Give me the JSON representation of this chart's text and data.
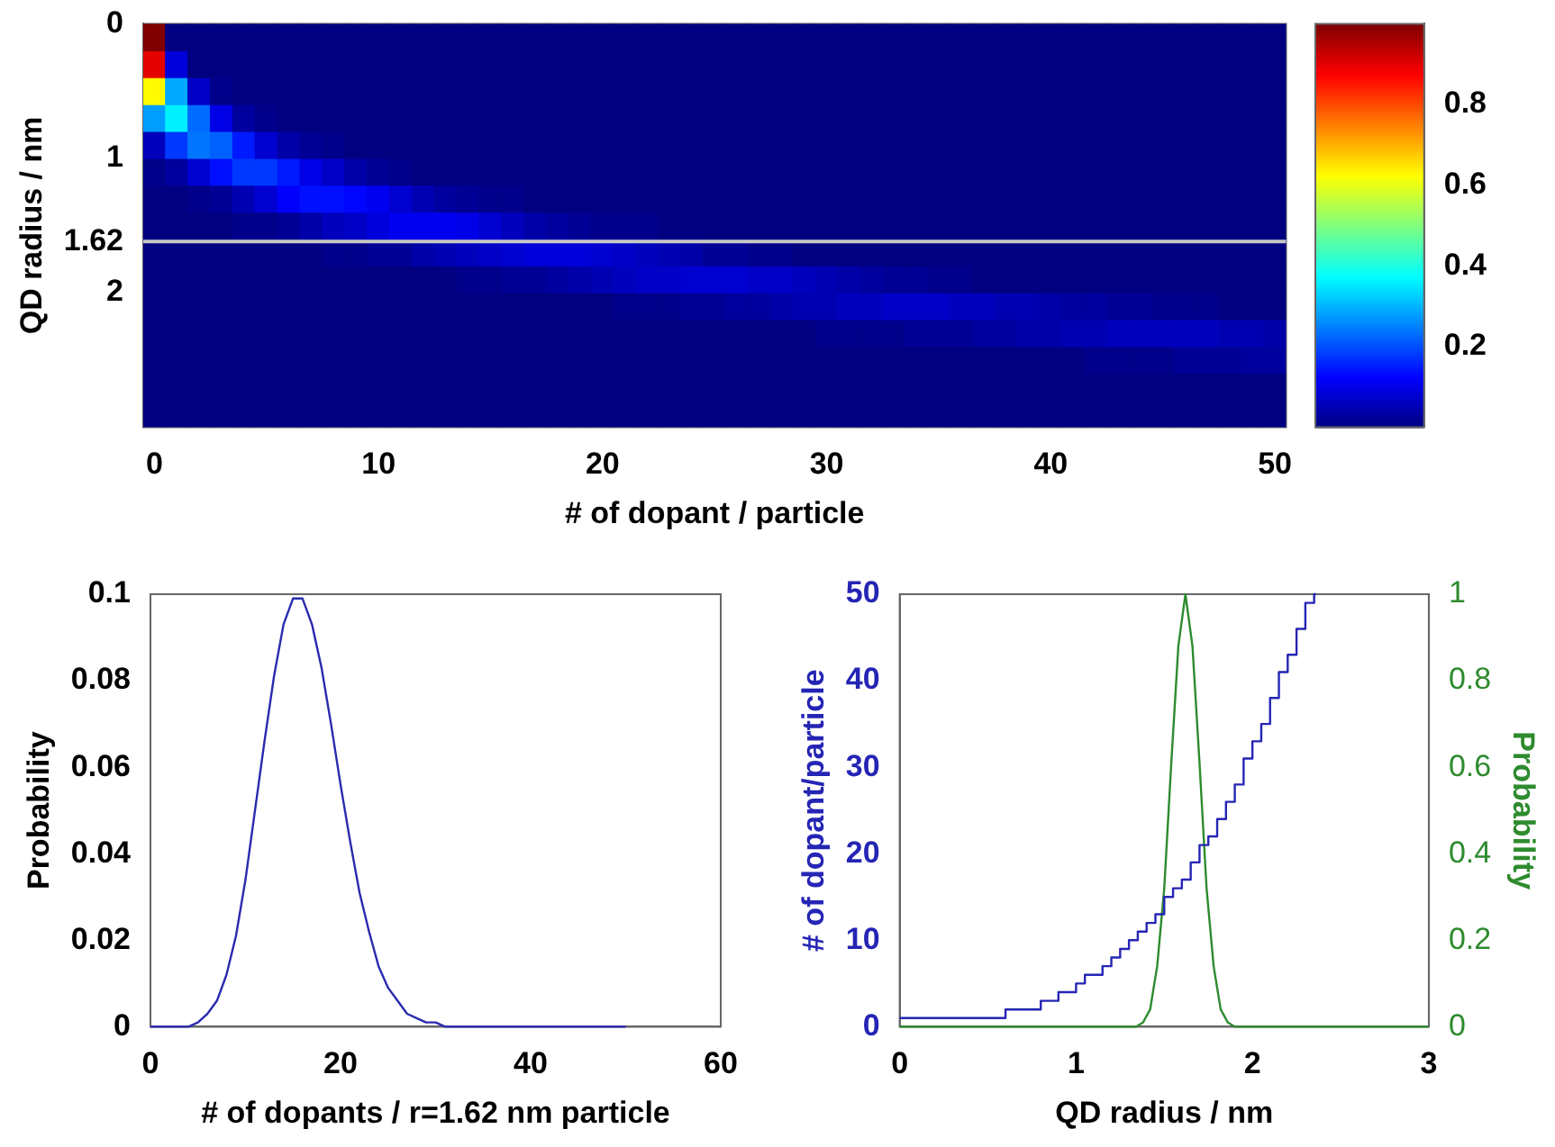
{
  "chart_data": [
    {
      "type": "heatmap",
      "xlabel": "# of dopant / particle",
      "ylabel": "QD radius / nm",
      "categories": [
        "0",
        null,
        null,
        null,
        null,
        null,
        null,
        null,
        null,
        null,
        "10",
        null,
        null,
        null,
        null,
        null,
        null,
        null,
        null,
        null,
        "20",
        null,
        null,
        null,
        null,
        null,
        null,
        null,
        null,
        null,
        "30",
        null,
        null,
        null,
        null,
        null,
        null,
        null,
        null,
        null,
        "40",
        null,
        null,
        null,
        null,
        null,
        null,
        null,
        null,
        null,
        "50"
      ],
      "ylim": [
        3,
        0
      ],
      "yticks": [
        0,
        1,
        1.62,
        2
      ],
      "clim": [
        0,
        1
      ],
      "cticks": [
        0.2,
        0.4,
        0.6,
        0.8
      ],
      "ref_lines": [
        {
          "axis": "y",
          "value": 1.62,
          "color": "#c8c8c8"
        }
      ],
      "cells": [
        [
          1,
          0,
          0,
          0,
          0,
          0,
          0,
          0,
          0,
          0,
          0,
          0,
          0,
          0,
          0,
          0,
          0,
          0,
          0,
          0,
          0,
          0,
          0,
          0,
          0,
          0,
          0,
          0,
          0,
          0,
          0,
          0,
          0,
          0,
          0,
          0,
          0,
          0,
          0,
          0,
          0,
          0,
          0,
          0,
          0,
          0,
          0,
          0,
          0,
          0,
          0
        ],
        [
          0.9,
          0.09,
          0,
          0,
          0,
          0,
          0,
          0,
          0,
          0,
          0,
          0,
          0,
          0,
          0,
          0,
          0,
          0,
          0,
          0,
          0,
          0,
          0,
          0,
          0,
          0,
          0,
          0,
          0,
          0,
          0,
          0,
          0,
          0,
          0,
          0,
          0,
          0,
          0,
          0,
          0,
          0,
          0,
          0,
          0,
          0,
          0,
          0,
          0,
          0,
          0
        ],
        [
          0.63,
          0.29,
          0.07,
          0.01,
          0,
          0,
          0,
          0,
          0,
          0,
          0,
          0,
          0,
          0,
          0,
          0,
          0,
          0,
          0,
          0,
          0,
          0,
          0,
          0,
          0,
          0,
          0,
          0,
          0,
          0,
          0,
          0,
          0,
          0,
          0,
          0,
          0,
          0,
          0,
          0,
          0,
          0,
          0,
          0,
          0,
          0,
          0,
          0,
          0,
          0,
          0
        ],
        [
          0.28,
          0.36,
          0.23,
          0.1,
          0.03,
          0.01,
          0,
          0,
          0,
          0,
          0,
          0,
          0,
          0,
          0,
          0,
          0,
          0,
          0,
          0,
          0,
          0,
          0,
          0,
          0,
          0,
          0,
          0,
          0,
          0,
          0,
          0,
          0,
          0,
          0,
          0,
          0,
          0,
          0,
          0,
          0,
          0,
          0,
          0,
          0,
          0,
          0,
          0,
          0,
          0,
          0
        ],
        [
          0.06,
          0.18,
          0.24,
          0.22,
          0.15,
          0.08,
          0.04,
          0.02,
          0.01,
          0,
          0,
          0,
          0,
          0,
          0,
          0,
          0,
          0,
          0,
          0,
          0,
          0,
          0,
          0,
          0,
          0,
          0,
          0,
          0,
          0,
          0,
          0,
          0,
          0,
          0,
          0,
          0,
          0,
          0,
          0,
          0,
          0,
          0,
          0,
          0,
          0,
          0,
          0,
          0,
          0,
          0
        ],
        [
          0.01,
          0.03,
          0.08,
          0.14,
          0.18,
          0.18,
          0.15,
          0.1,
          0.07,
          0.04,
          0.02,
          0.01,
          0,
          0,
          0,
          0,
          0,
          0,
          0,
          0,
          0,
          0,
          0,
          0,
          0,
          0,
          0,
          0,
          0,
          0,
          0,
          0,
          0,
          0,
          0,
          0,
          0,
          0,
          0,
          0,
          0,
          0,
          0,
          0,
          0,
          0,
          0,
          0,
          0,
          0,
          0
        ],
        [
          0,
          0,
          0.01,
          0.02,
          0.05,
          0.08,
          0.12,
          0.14,
          0.14,
          0.13,
          0.11,
          0.08,
          0.05,
          0.03,
          0.02,
          0.01,
          0.01,
          0,
          0,
          0,
          0,
          0,
          0,
          0,
          0,
          0,
          0,
          0,
          0,
          0,
          0,
          0,
          0,
          0,
          0,
          0,
          0,
          0,
          0,
          0,
          0,
          0,
          0,
          0,
          0,
          0,
          0,
          0,
          0,
          0,
          0
        ],
        [
          0,
          0,
          0,
          0,
          0.01,
          0.01,
          0.02,
          0.04,
          0.06,
          0.07,
          0.09,
          0.11,
          0.11,
          0.11,
          0.1,
          0.08,
          0.06,
          0.04,
          0.03,
          0.02,
          0.01,
          0.01,
          0.01,
          0,
          0,
          0,
          0,
          0,
          0,
          0,
          0,
          0,
          0,
          0,
          0,
          0,
          0,
          0,
          0,
          0,
          0,
          0,
          0,
          0,
          0,
          0,
          0,
          0,
          0,
          0,
          0
        ],
        [
          0,
          0,
          0,
          0,
          0,
          0,
          0,
          0,
          0.01,
          0.01,
          0.02,
          0.02,
          0.04,
          0.05,
          0.06,
          0.07,
          0.08,
          0.09,
          0.09,
          0.09,
          0.08,
          0.07,
          0.06,
          0.05,
          0.04,
          0.02,
          0.02,
          0.01,
          0.01,
          0,
          0,
          0,
          0,
          0,
          0,
          0,
          0,
          0,
          0,
          0,
          0,
          0,
          0,
          0,
          0,
          0,
          0,
          0,
          0,
          0,
          0
        ],
        [
          0,
          0,
          0,
          0,
          0,
          0,
          0,
          0,
          0,
          0,
          0,
          0,
          0,
          0,
          0.01,
          0.01,
          0.02,
          0.02,
          0.03,
          0.04,
          0.05,
          0.06,
          0.07,
          0.07,
          0.08,
          0.08,
          0.08,
          0.07,
          0.07,
          0.06,
          0.05,
          0.04,
          0.03,
          0.02,
          0.02,
          0.01,
          0.01,
          0,
          0,
          0,
          0,
          0,
          0,
          0,
          0,
          0,
          0,
          0,
          0,
          0,
          0
        ],
        [
          0,
          0,
          0,
          0,
          0,
          0,
          0,
          0,
          0,
          0,
          0,
          0,
          0,
          0,
          0,
          0,
          0,
          0,
          0,
          0,
          0,
          0.01,
          0.01,
          0.01,
          0.02,
          0.02,
          0.03,
          0.03,
          0.04,
          0.05,
          0.05,
          0.06,
          0.06,
          0.07,
          0.07,
          0.07,
          0.06,
          0.06,
          0.05,
          0.05,
          0.04,
          0.03,
          0.03,
          0.02,
          0.02,
          0.01,
          0.01,
          0.01,
          0,
          0,
          0
        ],
        [
          0,
          0,
          0,
          0,
          0,
          0,
          0,
          0,
          0,
          0,
          0,
          0,
          0,
          0,
          0,
          0,
          0,
          0,
          0,
          0,
          0,
          0,
          0,
          0,
          0,
          0,
          0,
          0,
          0,
          0,
          0.01,
          0.01,
          0.01,
          0.01,
          0.02,
          0.02,
          0.02,
          0.03,
          0.03,
          0.04,
          0.04,
          0.05,
          0.05,
          0.06,
          0.06,
          0.06,
          0.06,
          0.06,
          0.05,
          0.05,
          0.04
        ],
        [
          0,
          0,
          0,
          0,
          0,
          0,
          0,
          0,
          0,
          0,
          0,
          0,
          0,
          0,
          0,
          0,
          0,
          0,
          0,
          0,
          0,
          0,
          0,
          0,
          0,
          0,
          0,
          0,
          0,
          0,
          0,
          0,
          0,
          0,
          0,
          0,
          0,
          0,
          0,
          0,
          0,
          0,
          0.01,
          0.01,
          0.01,
          0.01,
          0.02,
          0.02,
          0.02,
          0.03,
          0.03
        ],
        [
          0,
          0,
          0,
          0,
          0,
          0,
          0,
          0,
          0,
          0,
          0,
          0,
          0,
          0,
          0,
          0,
          0,
          0,
          0,
          0,
          0,
          0,
          0,
          0,
          0,
          0,
          0,
          0,
          0,
          0,
          0,
          0,
          0,
          0,
          0,
          0,
          0,
          0,
          0,
          0,
          0,
          0,
          0,
          0,
          0,
          0,
          0,
          0,
          0,
          0,
          0
        ],
        [
          0,
          0,
          0,
          0,
          0,
          0,
          0,
          0,
          0,
          0,
          0,
          0,
          0,
          0,
          0,
          0,
          0,
          0,
          0,
          0,
          0,
          0,
          0,
          0,
          0,
          0,
          0,
          0,
          0,
          0,
          0,
          0,
          0,
          0,
          0,
          0,
          0,
          0,
          0,
          0,
          0,
          0,
          0,
          0,
          0,
          0,
          0,
          0,
          0,
          0,
          0
        ]
      ]
    },
    {
      "type": "line",
      "xlabel": "# of dopants / r=1.62 nm particle",
      "ylabel": "Probability",
      "color": "#2a2ab0",
      "x": [
        0,
        1,
        2,
        3,
        4,
        5,
        6,
        7,
        8,
        9,
        10,
        11,
        12,
        13,
        14,
        15,
        16,
        17,
        18,
        19,
        20,
        21,
        22,
        23,
        24,
        25,
        26,
        27,
        28,
        29,
        30,
        31,
        32,
        33,
        34,
        35,
        36,
        37,
        38,
        39,
        40,
        41,
        42,
        43,
        44,
        45,
        46,
        47,
        48,
        49,
        50
      ],
      "values": [
        0,
        0,
        0,
        0,
        0,
        0.001,
        0.003,
        0.006,
        0.012,
        0.021,
        0.034,
        0.05,
        0.066,
        0.081,
        0.093,
        0.099,
        0.099,
        0.093,
        0.083,
        0.07,
        0.056,
        0.043,
        0.031,
        0.022,
        0.014,
        0.009,
        0.006,
        0.003,
        0.002,
        0.001,
        0.001,
        0,
        0,
        0,
        0,
        0,
        0,
        0,
        0,
        0,
        0,
        0,
        0,
        0,
        0,
        0,
        0,
        0,
        0,
        0,
        0
      ],
      "xlim": [
        0,
        60
      ],
      "xticks": [
        0,
        20,
        40,
        60
      ],
      "ylim": [
        0,
        0.1
      ],
      "yticks": [
        0,
        0.02,
        0.04,
        0.06,
        0.08,
        0.1
      ]
    },
    {
      "type": "line",
      "xlabel": "QD radius / nm",
      "ylabel": "# of dopant/particle",
      "y2label": "Probability",
      "xlim": [
        0,
        3
      ],
      "xticks": [
        0,
        1,
        2,
        3
      ],
      "ylim": [
        0,
        50
      ],
      "yticks": [
        0,
        10,
        20,
        30,
        40,
        50
      ],
      "y2lim": [
        0,
        1
      ],
      "y2ticks": [
        0,
        0.2,
        0.4,
        0.6,
        0.8,
        1
      ],
      "series": [
        {
          "type": "step",
          "axis": "y",
          "color": "#2525b5",
          "x": [
            0,
            0.05,
            0.1,
            0.15,
            0.2,
            0.25,
            0.3,
            0.35,
            0.4,
            0.45,
            0.5,
            0.55,
            0.6,
            0.65,
            0.7,
            0.75,
            0.8,
            0.85,
            0.9,
            0.95,
            1,
            1.05,
            1.1,
            1.15,
            1.2,
            1.25,
            1.3,
            1.35,
            1.4,
            1.45,
            1.5,
            1.55,
            1.6,
            1.65,
            1.7,
            1.75,
            1.8,
            1.85,
            1.9,
            1.95,
            2,
            2.05,
            2.1,
            2.15,
            2.2,
            2.25,
            2.3,
            2.35,
            2.36
          ],
          "values": [
            1,
            1,
            1,
            1,
            1,
            1,
            1,
            1,
            1,
            1,
            1,
            1,
            1,
            2,
            2,
            2,
            2,
            3,
            3,
            4,
            4,
            5,
            6,
            6,
            7,
            8,
            9,
            10,
            11,
            12,
            13,
            15,
            16,
            17,
            19,
            21,
            22,
            24,
            26,
            28,
            31,
            33,
            35,
            38,
            41,
            43,
            46,
            49,
            50
          ]
        },
        {
          "type": "line",
          "axis": "y2",
          "color": "#2e8b2e",
          "x": [
            0,
            1.34,
            1.38,
            1.42,
            1.46,
            1.5,
            1.54,
            1.58,
            1.62,
            1.66,
            1.7,
            1.74,
            1.78,
            1.82,
            1.86,
            1.9,
            3
          ],
          "values": [
            0,
            0,
            0.01,
            0.04,
            0.14,
            0.32,
            0.61,
            0.88,
            1,
            0.88,
            0.61,
            0.32,
            0.14,
            0.04,
            0.01,
            0,
            0
          ]
        }
      ]
    }
  ]
}
